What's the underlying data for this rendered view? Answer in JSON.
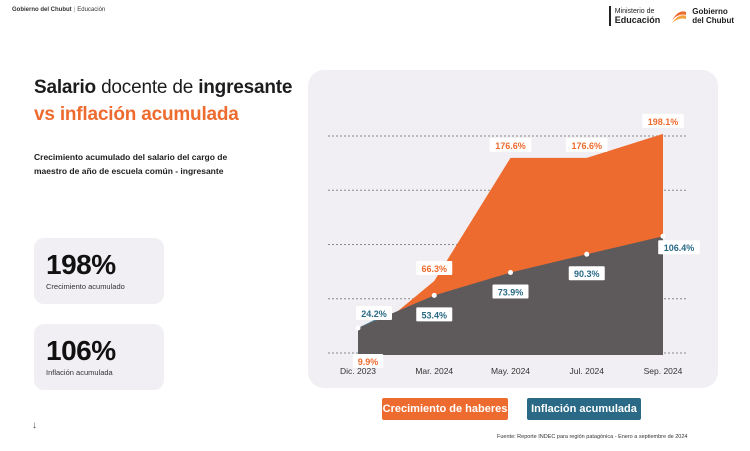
{
  "header": {
    "left_brand": "Gobierno del Chubut",
    "left_section": "Educación",
    "ministry_line1": "Ministerio de",
    "ministry_line2": "Educación",
    "gob_line1": "Gobierno",
    "gob_line2": "del Chubut"
  },
  "title": {
    "part1_bold": "Salario",
    "part2_thin": "docente de",
    "part3_bold": "ingresante",
    "line2": "vs inflación acumulada"
  },
  "subtitle": "Crecimiento acumulado del salario del cargo de maestro de año de escuela común - ingresante",
  "stats": [
    {
      "value": "198%",
      "label": "Crecimiento acumulado"
    },
    {
      "value": "106%",
      "label": "Inflación acumulada"
    }
  ],
  "arrow": "↓",
  "chart_data": {
    "type": "area",
    "categories": [
      "Dic. 2023",
      "Mar. 2024",
      "May. 2024",
      "Jul. 2024",
      "Sep. 2024"
    ],
    "series": [
      {
        "name": "Crecimiento de haberes",
        "color": "#ee6b2f",
        "x": [
          "Dic. 2023",
          "Mar. 2024",
          "May. 2024",
          "Jul. 2024",
          "Sep. 2024"
        ],
        "values": [
          9.9,
          66.3,
          176.6,
          176.6,
          198.1
        ],
        "labels": [
          "9.9%",
          "66.3%",
          "176.6%",
          "176.6%",
          "198.1%"
        ]
      },
      {
        "name": "Inflación acumulada",
        "color": "#5e5a5c",
        "x": [
          "Dic. 2023",
          "Mar. 2024",
          "May. 2024",
          "Jul. 2024",
          "Sep. 2024"
        ],
        "values": [
          24.2,
          53.4,
          73.9,
          90.3,
          106.4
        ],
        "labels": [
          "24.2%",
          "53.4%",
          "73.9%",
          "90.3%",
          "106.4%"
        ]
      }
    ],
    "ylim": [
      0,
      215
    ],
    "grid": true,
    "legend_position": "bottom"
  },
  "legend": {
    "item1": "Crecimiento de haberes",
    "item2": "Inflación acumulada"
  },
  "source": "Fuente: Reporte INDEC para región patagónica - Enero a septiembre de 2024"
}
